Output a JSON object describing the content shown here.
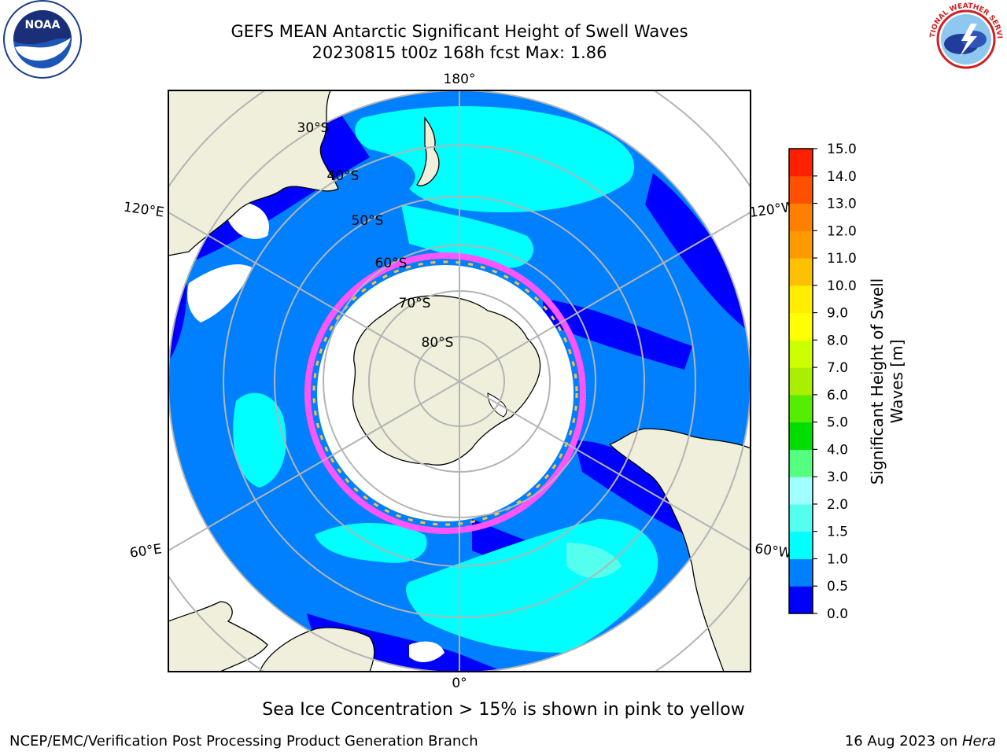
{
  "header": {
    "title_line1": "GEFS MEAN Antarctic Significant Height of Swell Waves",
    "title_line2": "20230815 t00z 168h fcst   Max: 1.86"
  },
  "logos": {
    "noaa_text": "NOAA",
    "nws_text": "NATIONAL WEATHER SERVICE"
  },
  "map": {
    "projection": "south-polar-stereographic",
    "lon_labels": [
      "180°",
      "120°E",
      "120°W",
      "60°E",
      "60°W",
      "0°"
    ],
    "lat_labels": [
      "30°S",
      "40°S",
      "50°S",
      "60°S",
      "70°S",
      "80°S"
    ],
    "colors": {
      "land": "#efefdc",
      "ocean_0_0_5": "#0000ff",
      "ocean_0_5_1_0": "#0080ff",
      "ocean_1_0_1_5": "#00ffff",
      "ocean_1_5_2_0": "#55ffee",
      "sea_ice_edge": "#ff55ff",
      "sea_ice_interior": "#ffffff",
      "sea_ice_highlight": "#ffc040",
      "grid": "#b4b4b4"
    }
  },
  "colorbar": {
    "label": "Significant Height of Swell\nWaves [m]",
    "ticks": [
      "0.0",
      "0.5",
      "1.0",
      "1.5",
      "2.0",
      "3.0",
      "4.0",
      "5.0",
      "6.0",
      "7.0",
      "8.0",
      "9.0",
      "10.0",
      "11.0",
      "12.0",
      "13.0",
      "14.0",
      "15.0"
    ],
    "colors": [
      "#0000ff",
      "#0080ff",
      "#00ffff",
      "#55ffee",
      "#a0ffff",
      "#55ff80",
      "#00dd00",
      "#55ee00",
      "#aaee00",
      "#ccff00",
      "#ffff00",
      "#ffee00",
      "#ffc000",
      "#ff9900",
      "#ff8000",
      "#ff5000",
      "#ff2000"
    ]
  },
  "caption": "Sea Ice Concentration > 15% is shown in pink to yellow",
  "footer": {
    "left": "NCEP/EMC/Verification Post Processing Product Generation Branch",
    "right_date": "16 Aug 2023 on ",
    "right_host": "Hera"
  }
}
